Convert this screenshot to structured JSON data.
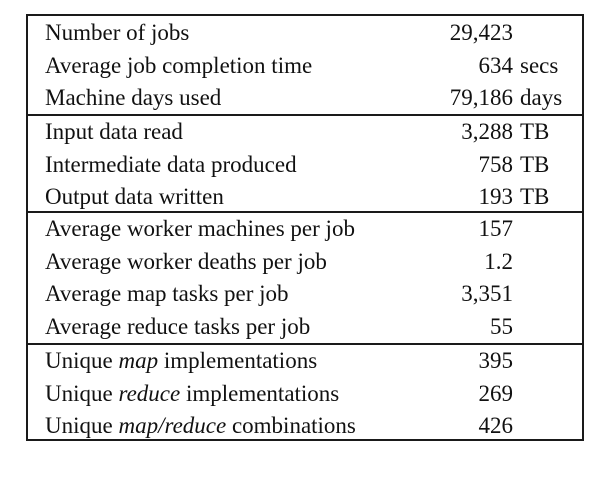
{
  "table": {
    "groups": [
      {
        "rows": [
          {
            "label": [
              {
                "text": "Number of jobs"
              }
            ],
            "value": "29,423",
            "unit": ""
          },
          {
            "label": [
              {
                "text": "Average job completion time"
              }
            ],
            "value": "634",
            "unit": "secs"
          },
          {
            "label": [
              {
                "text": "Machine days used"
              }
            ],
            "value": "79,186",
            "unit": "days"
          }
        ]
      },
      {
        "rows": [
          {
            "label": [
              {
                "text": "Input data read"
              }
            ],
            "value": "3,288",
            "unit": "TB"
          },
          {
            "label": [
              {
                "text": "Intermediate data produced"
              }
            ],
            "value": "758",
            "unit": "TB"
          },
          {
            "label": [
              {
                "text": "Output data written"
              }
            ],
            "value": "193",
            "unit": "TB"
          }
        ]
      },
      {
        "rows": [
          {
            "label": [
              {
                "text": "Average worker machines per job"
              }
            ],
            "value": "157",
            "unit": ""
          },
          {
            "label": [
              {
                "text": "Average worker deaths per job"
              }
            ],
            "value": "1.2",
            "unit": ""
          },
          {
            "label": [
              {
                "text": "Average map tasks per job"
              }
            ],
            "value": "3,351",
            "unit": ""
          },
          {
            "label": [
              {
                "text": "Average reduce tasks per job"
              }
            ],
            "value": "55",
            "unit": ""
          }
        ]
      },
      {
        "rows": [
          {
            "label": [
              {
                "text": "Unique "
              },
              {
                "text": "map",
                "italic": true
              },
              {
                "text": " implementations"
              }
            ],
            "value": "395",
            "unit": ""
          },
          {
            "label": [
              {
                "text": "Unique "
              },
              {
                "text": "reduce",
                "italic": true
              },
              {
                "text": " implementations"
              }
            ],
            "value": "269",
            "unit": ""
          },
          {
            "label": [
              {
                "text": "Unique "
              },
              {
                "text": "map/reduce",
                "italic": true
              },
              {
                "text": " combinations"
              }
            ],
            "value": "426",
            "unit": ""
          }
        ]
      }
    ]
  }
}
